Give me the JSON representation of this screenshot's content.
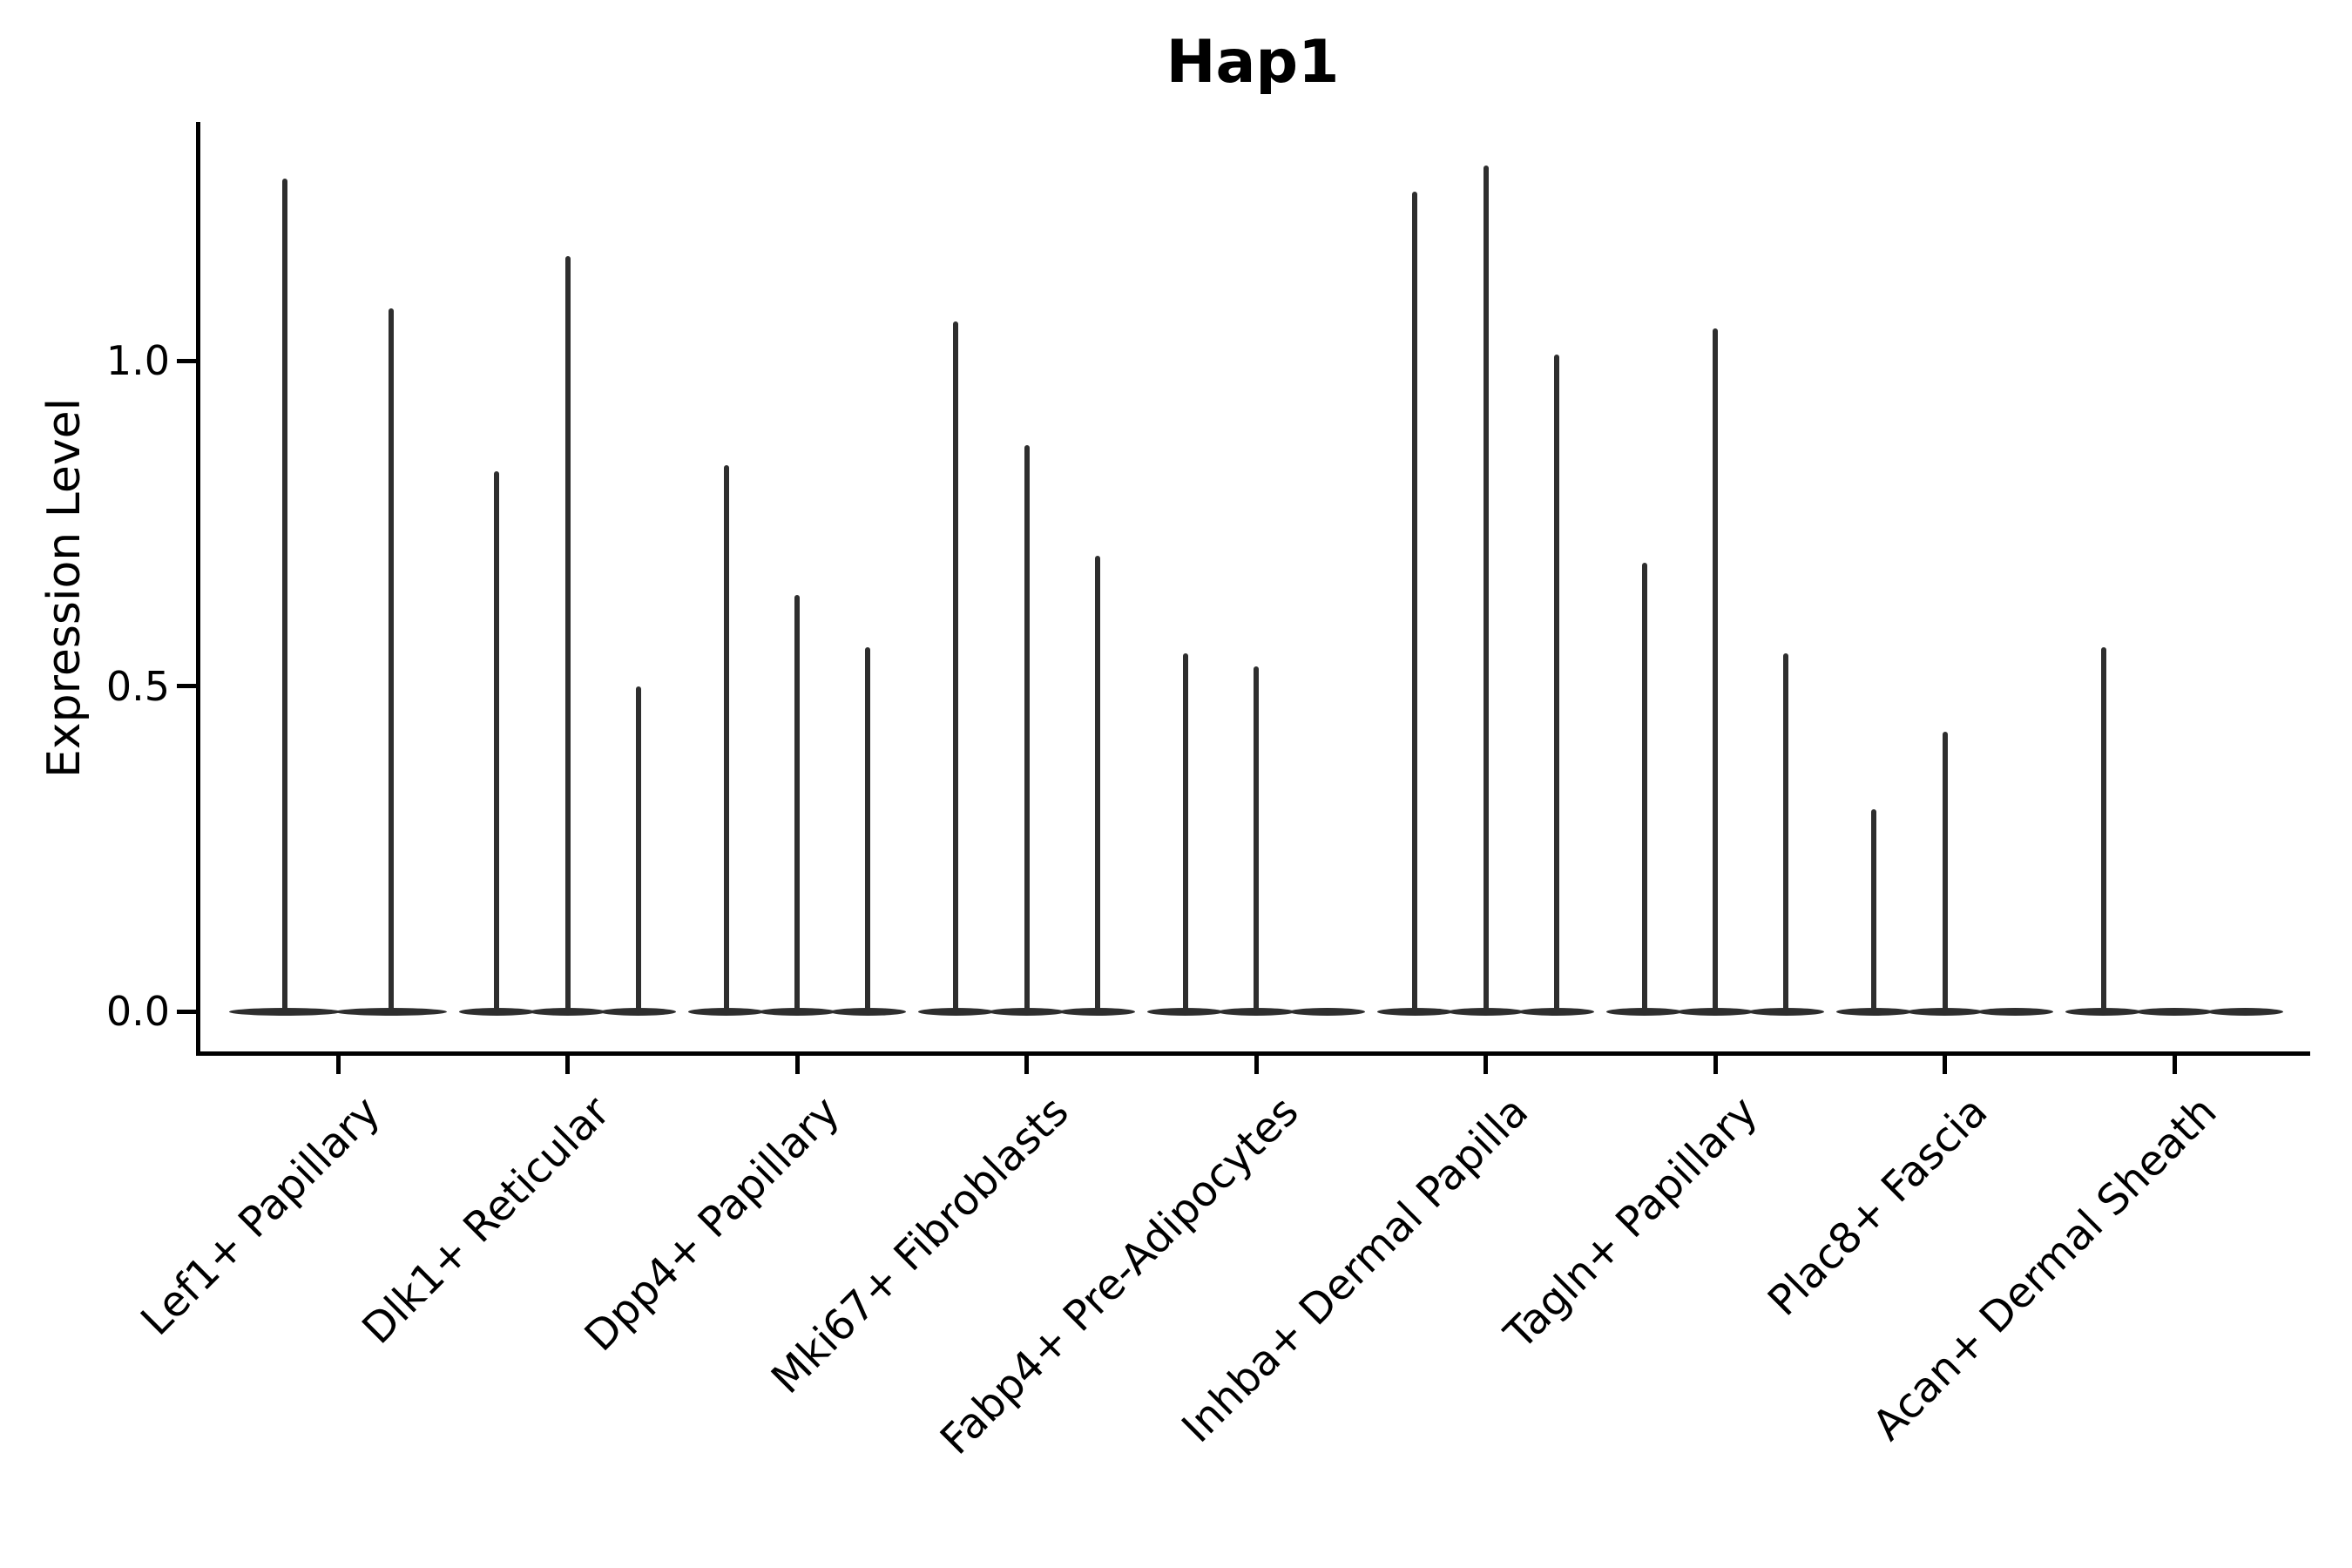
{
  "figure": {
    "background": "#ffffff"
  },
  "chart_data": {
    "type": "violin",
    "title": "Hap1",
    "ylabel": "Expression Level",
    "xlabel": "",
    "ytick_labels": [
      "0.0",
      "0.5",
      "1.0"
    ],
    "ytick_values": [
      0.0,
      0.5,
      1.0
    ],
    "ylim": [
      -0.07,
      1.37
    ],
    "grid": false,
    "legend": "none",
    "description": "Needle-thin violin plot of Hap1 expression; each category shows 2-3 narrow violins flattened at 0 with thin spikes reaching the listed maximum expression values.",
    "categories": [
      "Lef1+ Papillary",
      "Dlk1+ Reticular",
      "Dpp4+ Papillary",
      "Mki67+ Fibroblasts",
      "Fabp4+ Pre-Adipocytes",
      "Inhba+ Dermal Papilla",
      "Tagln+ Papillary",
      "Plac8+ Fascia",
      "Acan+ Dermal Sheath"
    ],
    "series": [
      {
        "category": "Lef1+ Papillary",
        "violin_max_values": [
          1.28,
          1.08
        ]
      },
      {
        "category": "Dlk1+ Reticular",
        "violin_max_values": [
          0.83,
          1.16,
          0.5
        ]
      },
      {
        "category": "Dpp4+ Papillary",
        "violin_max_values": [
          0.84,
          0.64,
          0.56
        ]
      },
      {
        "category": "Mki67+ Fibroblasts",
        "violin_max_values": [
          1.06,
          0.87,
          0.7
        ]
      },
      {
        "category": "Fabp4+ Pre-Adipocytes",
        "violin_max_values": [
          0.55,
          0.53,
          0.0
        ]
      },
      {
        "category": "Inhba+ Dermal Papilla",
        "violin_max_values": [
          1.26,
          1.3,
          1.01
        ]
      },
      {
        "category": "Tagln+ Papillary",
        "violin_max_values": [
          0.69,
          1.05,
          0.55
        ]
      },
      {
        "category": "Plac8+ Fascia",
        "violin_max_values": [
          0.31,
          0.43,
          0.0
        ]
      },
      {
        "category": "Acan+ Dermal Sheath",
        "violin_max_values": [
          0.56,
          0.0,
          0.0
        ]
      }
    ],
    "colors": {
      "violin": "#2e2e2e",
      "axis": "#000000",
      "text": "#000000"
    }
  }
}
